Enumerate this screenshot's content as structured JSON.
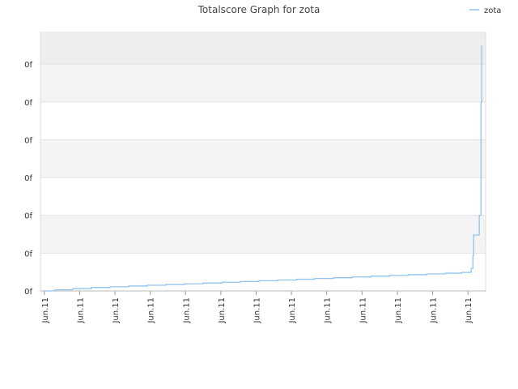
{
  "chart_data": {
    "type": "line",
    "title": "Totalscore Graph for zota",
    "step": true,
    "legend": "top-right",
    "series": [
      {
        "name": "zota",
        "color": "#90c4ef",
        "x": [
          0,
          0.3,
          0.8,
          1.33,
          1.86,
          2.39,
          2.91,
          3.44,
          3.97,
          4.5,
          5.03,
          5.55,
          6.08,
          6.61,
          7.14,
          7.66,
          8.19,
          8.72,
          9.25,
          9.78,
          10.3,
          10.83,
          11.36,
          11.82,
          12.09,
          12.14,
          12.16,
          12.32,
          12.37,
          12.39
        ],
        "values": [
          0,
          0.03,
          0.06,
          0.09,
          0.11,
          0.13,
          0.15,
          0.17,
          0.19,
          0.21,
          0.23,
          0.25,
          0.27,
          0.29,
          0.31,
          0.33,
          0.35,
          0.37,
          0.39,
          0.41,
          0.43,
          0.45,
          0.47,
          0.49,
          0.6,
          0.94,
          1.48,
          2.0,
          5.0,
          6.5
        ]
      }
    ],
    "xlim": [
      -0.11,
      12.5
    ],
    "xticks": [
      {
        "value": 0,
        "label": "Jun.11"
      },
      {
        "value": 1,
        "label": "Jun.11"
      },
      {
        "value": 2,
        "label": "Jun.11"
      },
      {
        "value": 3,
        "label": "Jun.11"
      },
      {
        "value": 4,
        "label": "Jun.11"
      },
      {
        "value": 5,
        "label": "Jun.11"
      },
      {
        "value": 6,
        "label": "Jun.11"
      },
      {
        "value": 7,
        "label": "Jun.11"
      },
      {
        "value": 8,
        "label": "Jun.11"
      },
      {
        "value": 9,
        "label": "Jun.11"
      },
      {
        "value": 10,
        "label": "Jun.11"
      },
      {
        "value": 11,
        "label": "Jun.11"
      },
      {
        "value": 12,
        "label": "Jun.11"
      }
    ],
    "ylim": [
      0,
      6.84
    ],
    "yticks": [
      {
        "value": 0,
        "label": "0f"
      },
      {
        "value": 1,
        "label": "0f"
      },
      {
        "value": 2,
        "label": "0f"
      },
      {
        "value": 3,
        "label": "0f"
      },
      {
        "value": 4,
        "label": "0f"
      },
      {
        "value": 5,
        "label": "0f"
      },
      {
        "value": 6,
        "label": "0f"
      }
    ],
    "grid": true
  }
}
